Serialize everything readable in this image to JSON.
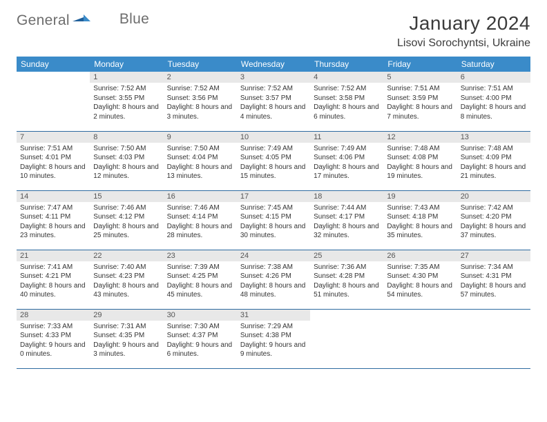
{
  "brand": {
    "word1": "General",
    "word2": "Blue"
  },
  "title": "January 2024",
  "location": "Lisovi Sorochyntsi, Ukraine",
  "colors": {
    "header_bg": "#3a8bc9",
    "header_fg": "#ffffff",
    "daynum_bg": "#e8e8e8",
    "rule": "#2c6aa0",
    "brand_gray": "#6d6d6d",
    "brand_blue": "#2f7bc2"
  },
  "typography": {
    "title_fontsize": 28,
    "location_fontsize": 16,
    "header_fontsize": 12,
    "daynum_fontsize": 11,
    "body_fontsize": 10
  },
  "weekdays": [
    "Sunday",
    "Monday",
    "Tuesday",
    "Wednesday",
    "Thursday",
    "Friday",
    "Saturday"
  ],
  "weeks": [
    [
      null,
      {
        "n": "1",
        "sr": "7:52 AM",
        "ss": "3:55 PM",
        "dl": "8 hours and 2 minutes."
      },
      {
        "n": "2",
        "sr": "7:52 AM",
        "ss": "3:56 PM",
        "dl": "8 hours and 3 minutes."
      },
      {
        "n": "3",
        "sr": "7:52 AM",
        "ss": "3:57 PM",
        "dl": "8 hours and 4 minutes."
      },
      {
        "n": "4",
        "sr": "7:52 AM",
        "ss": "3:58 PM",
        "dl": "8 hours and 6 minutes."
      },
      {
        "n": "5",
        "sr": "7:51 AM",
        "ss": "3:59 PM",
        "dl": "8 hours and 7 minutes."
      },
      {
        "n": "6",
        "sr": "7:51 AM",
        "ss": "4:00 PM",
        "dl": "8 hours and 8 minutes."
      }
    ],
    [
      {
        "n": "7",
        "sr": "7:51 AM",
        "ss": "4:01 PM",
        "dl": "8 hours and 10 minutes."
      },
      {
        "n": "8",
        "sr": "7:50 AM",
        "ss": "4:03 PM",
        "dl": "8 hours and 12 minutes."
      },
      {
        "n": "9",
        "sr": "7:50 AM",
        "ss": "4:04 PM",
        "dl": "8 hours and 13 minutes."
      },
      {
        "n": "10",
        "sr": "7:49 AM",
        "ss": "4:05 PM",
        "dl": "8 hours and 15 minutes."
      },
      {
        "n": "11",
        "sr": "7:49 AM",
        "ss": "4:06 PM",
        "dl": "8 hours and 17 minutes."
      },
      {
        "n": "12",
        "sr": "7:48 AM",
        "ss": "4:08 PM",
        "dl": "8 hours and 19 minutes."
      },
      {
        "n": "13",
        "sr": "7:48 AM",
        "ss": "4:09 PM",
        "dl": "8 hours and 21 minutes."
      }
    ],
    [
      {
        "n": "14",
        "sr": "7:47 AM",
        "ss": "4:11 PM",
        "dl": "8 hours and 23 minutes."
      },
      {
        "n": "15",
        "sr": "7:46 AM",
        "ss": "4:12 PM",
        "dl": "8 hours and 25 minutes."
      },
      {
        "n": "16",
        "sr": "7:46 AM",
        "ss": "4:14 PM",
        "dl": "8 hours and 28 minutes."
      },
      {
        "n": "17",
        "sr": "7:45 AM",
        "ss": "4:15 PM",
        "dl": "8 hours and 30 minutes."
      },
      {
        "n": "18",
        "sr": "7:44 AM",
        "ss": "4:17 PM",
        "dl": "8 hours and 32 minutes."
      },
      {
        "n": "19",
        "sr": "7:43 AM",
        "ss": "4:18 PM",
        "dl": "8 hours and 35 minutes."
      },
      {
        "n": "20",
        "sr": "7:42 AM",
        "ss": "4:20 PM",
        "dl": "8 hours and 37 minutes."
      }
    ],
    [
      {
        "n": "21",
        "sr": "7:41 AM",
        "ss": "4:21 PM",
        "dl": "8 hours and 40 minutes."
      },
      {
        "n": "22",
        "sr": "7:40 AM",
        "ss": "4:23 PM",
        "dl": "8 hours and 43 minutes."
      },
      {
        "n": "23",
        "sr": "7:39 AM",
        "ss": "4:25 PM",
        "dl": "8 hours and 45 minutes."
      },
      {
        "n": "24",
        "sr": "7:38 AM",
        "ss": "4:26 PM",
        "dl": "8 hours and 48 minutes."
      },
      {
        "n": "25",
        "sr": "7:36 AM",
        "ss": "4:28 PM",
        "dl": "8 hours and 51 minutes."
      },
      {
        "n": "26",
        "sr": "7:35 AM",
        "ss": "4:30 PM",
        "dl": "8 hours and 54 minutes."
      },
      {
        "n": "27",
        "sr": "7:34 AM",
        "ss": "4:31 PM",
        "dl": "8 hours and 57 minutes."
      }
    ],
    [
      {
        "n": "28",
        "sr": "7:33 AM",
        "ss": "4:33 PM",
        "dl": "9 hours and 0 minutes."
      },
      {
        "n": "29",
        "sr": "7:31 AM",
        "ss": "4:35 PM",
        "dl": "9 hours and 3 minutes."
      },
      {
        "n": "30",
        "sr": "7:30 AM",
        "ss": "4:37 PM",
        "dl": "9 hours and 6 minutes."
      },
      {
        "n": "31",
        "sr": "7:29 AM",
        "ss": "4:38 PM",
        "dl": "9 hours and 9 minutes."
      },
      null,
      null,
      null
    ]
  ],
  "labels": {
    "sunrise": "Sunrise:",
    "sunset": "Sunset:",
    "daylight": "Daylight:"
  }
}
